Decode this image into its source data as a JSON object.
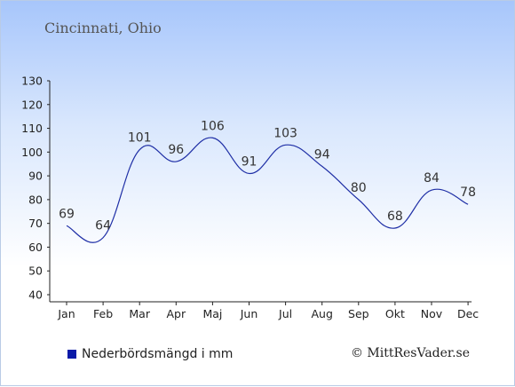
{
  "header": {
    "title": "Cincinnati, Ohio"
  },
  "colors": {
    "line": "#1f2fa6",
    "swatch": "#0a1aa8"
  },
  "chart_data": {
    "type": "line",
    "categories": [
      "Jan",
      "Feb",
      "Mar",
      "Apr",
      "Maj",
      "Jun",
      "Jul",
      "Aug",
      "Sep",
      "Okt",
      "Nov",
      "Dec"
    ],
    "series": [
      {
        "name": "Nederbördsmängd i mm",
        "values": [
          69,
          64,
          101,
          96,
          106,
          91,
          103,
          94,
          80,
          68,
          84,
          78
        ]
      }
    ],
    "title": "Cincinnati, Ohio",
    "xlabel": "",
    "ylabel": "",
    "ylim": [
      40,
      130
    ],
    "yticks": [
      40,
      50,
      60,
      70,
      80,
      90,
      100,
      110,
      120,
      130
    ],
    "grid": false,
    "legend_position": "bottom-left"
  },
  "legend": {
    "label": "Nederbördsmängd i mm"
  },
  "footer": {
    "credit": "© MittResVader.se"
  }
}
